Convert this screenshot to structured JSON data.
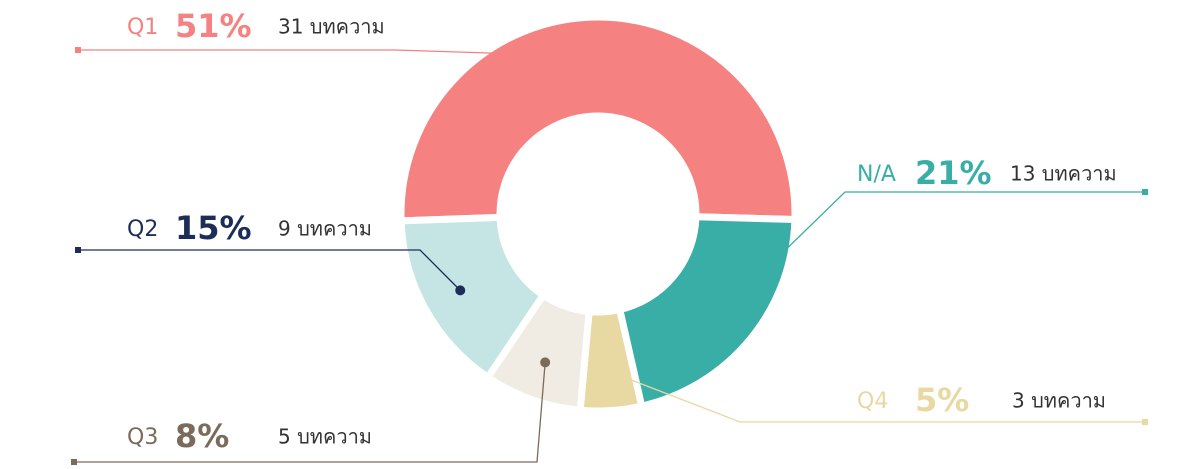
{
  "chart_data": {
    "type": "donut",
    "categories": [
      "Q1",
      "N/A",
      "Q4",
      "Q3",
      "Q2"
    ],
    "values": [
      51,
      21,
      5,
      8,
      15
    ],
    "value_labels": [
      "51%",
      "21%",
      "5%",
      "8%",
      "15%"
    ],
    "count_labels": [
      "31 บทความ",
      "13 บทความ",
      "3 บทความ",
      "5 บทความ",
      "9 บทความ"
    ],
    "colors": [
      "#f58181",
      "#38aea7",
      "#e8d8a2",
      "#f0ebe3",
      "#c5e4e4"
    ],
    "label_colors": [
      "#f58181",
      "#38aea7",
      "#e8d8a2",
      "#7a6b5a",
      "#1c2d58"
    ]
  }
}
